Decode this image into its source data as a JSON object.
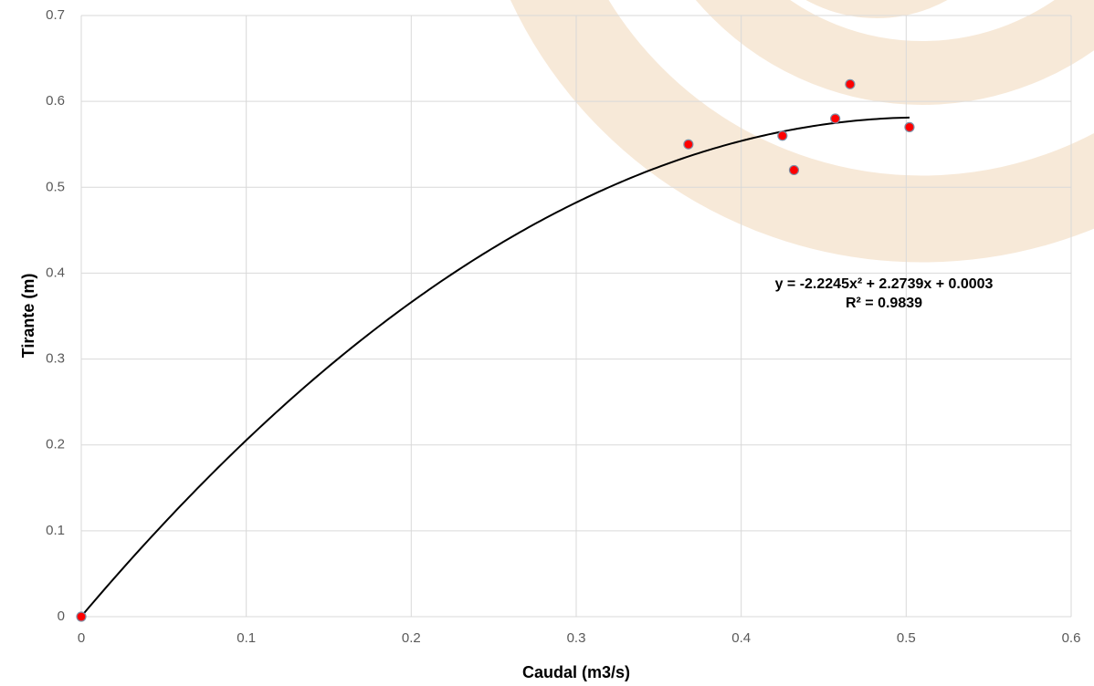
{
  "chart_data": {
    "type": "scatter",
    "x_label": "Caudal (m3/s)",
    "y_label": "Tirante (m)",
    "series": [
      {
        "color": "#ff0000",
        "x": [
          0,
          0.368,
          0.425,
          0.432,
          0.457,
          0.466,
          0.502
        ],
        "values": [
          0,
          0.55,
          0.56,
          0.52,
          0.58,
          0.62,
          0.57
        ]
      }
    ],
    "trendline": {
      "equation": "y = -2.2245x² + 2.2739x + 0.0003",
      "r2": "R² = 0.9839",
      "coefficients": [
        -2.2245,
        2.2739,
        0.0003
      ],
      "color": "#000000"
    },
    "xlim": [
      0,
      0.6
    ],
    "xticks": [
      0,
      0.1,
      0.2,
      0.3,
      0.4,
      0.5,
      0.6
    ],
    "ylim": [
      0,
      0.7
    ],
    "yticks": [
      0,
      0.1,
      0.2,
      0.3,
      0.4,
      0.5,
      0.6,
      0.7
    ],
    "grid": true
  }
}
